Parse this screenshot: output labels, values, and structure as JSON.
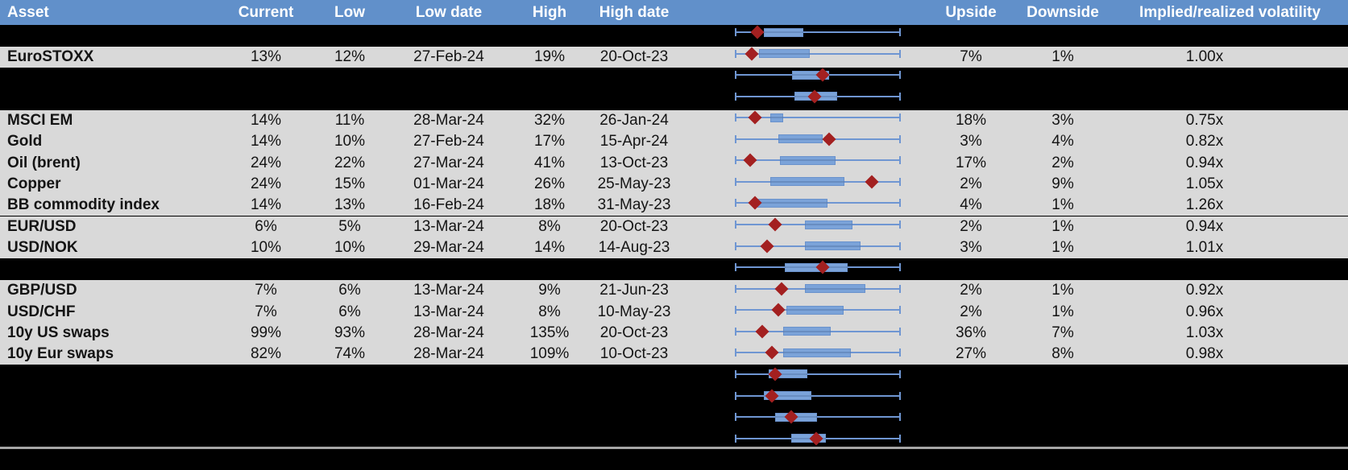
{
  "table": {
    "columns": [
      {
        "key": "asset",
        "label": "Asset"
      },
      {
        "key": "current",
        "label": "Current"
      },
      {
        "key": "low",
        "label": "Low"
      },
      {
        "key": "low_date",
        "label": "Low date"
      },
      {
        "key": "high",
        "label": "High"
      },
      {
        "key": "high_date",
        "label": "High date"
      },
      {
        "key": "upside",
        "label": "Upside"
      },
      {
        "key": "downside",
        "label": "Downside"
      },
      {
        "key": "impl_real",
        "label": "Implied/realized volatility"
      }
    ],
    "rows": [
      {
        "asset": "EuroSTOXX",
        "current": "13%",
        "low": "12%",
        "low_date": "27-Feb-24",
        "high": "19%",
        "high_date": "20-Oct-23",
        "upside": "7%",
        "downside": "1%",
        "impl_real": "1.00x"
      },
      {
        "asset": "MSCI EM",
        "current": "14%",
        "low": "11%",
        "low_date": "28-Mar-24",
        "high": "32%",
        "high_date": "26-Jan-24",
        "upside": "18%",
        "downside": "3%",
        "impl_real": "0.75x"
      },
      {
        "asset": "Gold",
        "current": "14%",
        "low": "10%",
        "low_date": "27-Feb-24",
        "high": "17%",
        "high_date": "15-Apr-24",
        "upside": "3%",
        "downside": "4%",
        "impl_real": "0.82x"
      },
      {
        "asset": "Oil (brent)",
        "current": "24%",
        "low": "22%",
        "low_date": "27-Mar-24",
        "high": "41%",
        "high_date": "13-Oct-23",
        "upside": "17%",
        "downside": "2%",
        "impl_real": "0.94x"
      },
      {
        "asset": "Copper",
        "current": "24%",
        "low": "15%",
        "low_date": "01-Mar-24",
        "high": "26%",
        "high_date": "25-May-23",
        "upside": "2%",
        "downside": "9%",
        "impl_real": "1.05x"
      },
      {
        "asset": "BB commodity index",
        "current": "14%",
        "low": "13%",
        "low_date": "16-Feb-24",
        "high": "18%",
        "high_date": "31-May-23",
        "upside": "4%",
        "downside": "1%",
        "impl_real": "1.26x"
      },
      {
        "asset": "EUR/USD",
        "current": "6%",
        "low": "5%",
        "low_date": "13-Mar-24",
        "high": "8%",
        "high_date": "20-Oct-23",
        "upside": "2%",
        "downside": "1%",
        "impl_real": "0.94x"
      },
      {
        "asset": "USD/NOK",
        "current": "10%",
        "low": "10%",
        "low_date": "29-Mar-24",
        "high": "14%",
        "high_date": "14-Aug-23",
        "upside": "3%",
        "downside": "1%",
        "impl_real": "1.01x"
      },
      {
        "asset": "GBP/USD",
        "current": "7%",
        "low": "6%",
        "low_date": "13-Mar-24",
        "high": "9%",
        "high_date": "21-Jun-23",
        "upside": "2%",
        "downside": "1%",
        "impl_real": "0.92x"
      },
      {
        "asset": "USD/CHF",
        "current": "7%",
        "low": "6%",
        "low_date": "13-Mar-24",
        "high": "8%",
        "high_date": "10-May-23",
        "upside": "2%",
        "downside": "1%",
        "impl_real": "0.96x"
      },
      {
        "asset": "10y US swaps",
        "current": "99%",
        "low": "93%",
        "low_date": "28-Mar-24",
        "high": "135%",
        "high_date": "20-Oct-23",
        "upside": "36%",
        "downside": "7%",
        "impl_real": "1.03x"
      },
      {
        "asset": "10y Eur swaps",
        "current": "82%",
        "low": "74%",
        "low_date": "28-Mar-24",
        "high": "109%",
        "high_date": "10-Oct-23",
        "upside": "27%",
        "downside": "8%",
        "impl_real": "0.98x"
      }
    ]
  },
  "chart_data": {
    "type": "boxplot",
    "orientation": "horizontal",
    "whisker_range": [
      0,
      1
    ],
    "marker_shape": "diamond",
    "plots": [
      {
        "label": "",
        "box": [
          0.17,
          0.41
        ],
        "marker": 0.13
      },
      {
        "label": "EuroSTOXX",
        "box": [
          0.14,
          0.45
        ],
        "marker": 0.1
      },
      {
        "label": "",
        "box": [
          0.345,
          0.57
        ],
        "marker": 0.53
      },
      {
        "label": "",
        "box": [
          0.36,
          0.62
        ],
        "marker": 0.48
      },
      {
        "label": "MSCI EM",
        "box": [
          0.21,
          0.29
        ],
        "marker": 0.12
      },
      {
        "label": "Gold",
        "box": [
          0.26,
          0.53
        ],
        "marker": 0.57
      },
      {
        "label": "Oil (brent)",
        "box": [
          0.27,
          0.61
        ],
        "marker": 0.09
      },
      {
        "label": "Copper",
        "box": [
          0.21,
          0.66
        ],
        "marker": 0.83
      },
      {
        "label": "BB commodity index",
        "box": [
          0.13,
          0.56
        ],
        "marker": 0.12
      },
      {
        "label": "EUR/USD",
        "box": [
          0.42,
          0.71
        ],
        "marker": 0.24
      },
      {
        "label": "USD/NOK",
        "box": [
          0.42,
          0.76
        ],
        "marker": 0.19
      },
      {
        "label": "",
        "box": [
          0.3,
          0.68
        ],
        "marker": 0.53
      },
      {
        "label": "GBP/USD",
        "box": [
          0.42,
          0.79
        ],
        "marker": 0.28
      },
      {
        "label": "USD/CHF",
        "box": [
          0.31,
          0.655
        ],
        "marker": 0.26
      },
      {
        "label": "10y US swaps",
        "box": [
          0.29,
          0.58
        ],
        "marker": 0.16
      },
      {
        "label": "10y Eur swaps",
        "box": [
          0.29,
          0.7
        ],
        "marker": 0.22
      },
      {
        "label": "",
        "box": [
          0.2,
          0.435
        ],
        "marker": 0.24
      },
      {
        "label": "",
        "box": [
          0.17,
          0.46
        ],
        "marker": 0.22
      },
      {
        "label": "",
        "box": [
          0.24,
          0.495
        ],
        "marker": 0.34
      },
      {
        "label": "",
        "box": [
          0.34,
          0.55
        ],
        "marker": 0.49
      }
    ]
  },
  "colors": {
    "header_bg": "#6190CA",
    "header_text": "#FFFFFF",
    "row_bg": "#D9D9D9",
    "hidden_row_bg": "#000000",
    "box_fill": "#7BA3D9",
    "whisker": "#6F96D2",
    "marker": "#A32020",
    "separator": "#A6A6A6",
    "text": "#141414"
  }
}
